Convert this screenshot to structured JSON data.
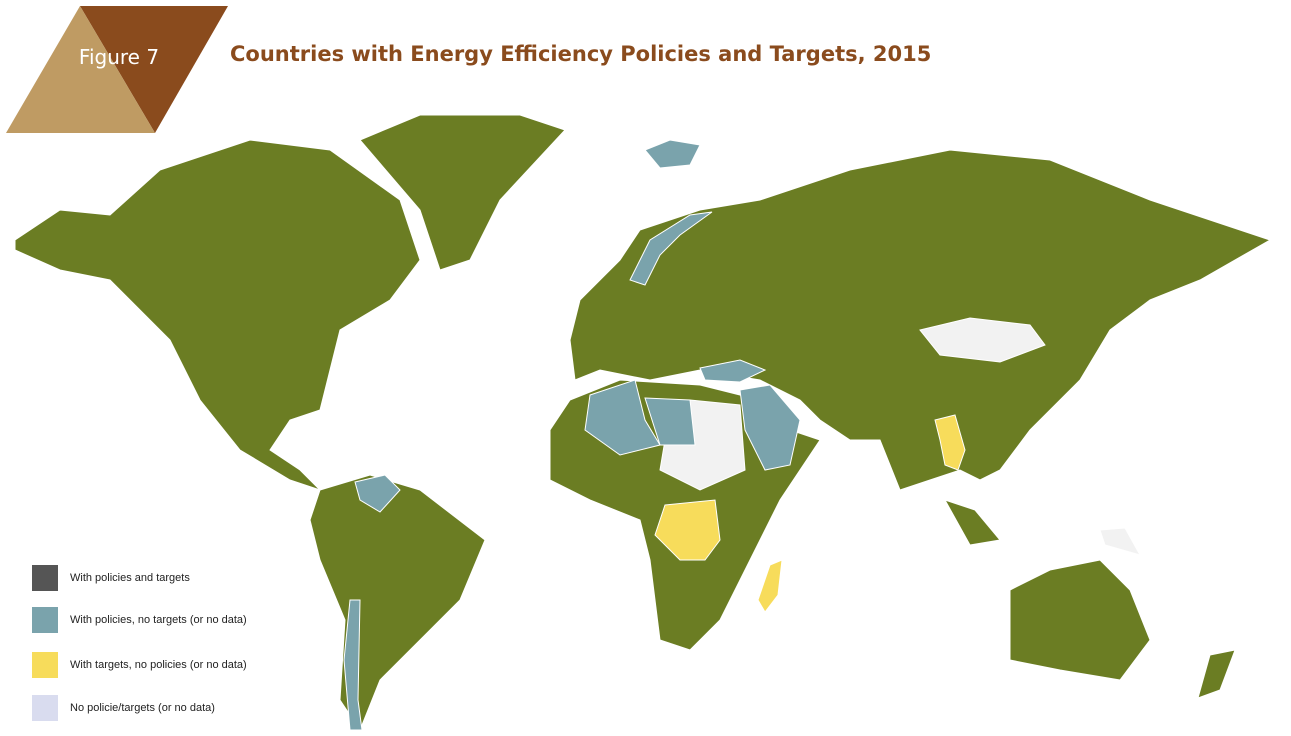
{
  "header": {
    "figure_label": "Figure 7",
    "title": "Countries with Energy Efficiency Policies and Targets, 2015"
  },
  "legend": [
    {
      "label": "With policies and targets",
      "color": "#555555"
    },
    {
      "label": "With policies, no targets (or no data)",
      "color": "#7aa3ac"
    },
    {
      "label": "With targets, no policies (or no data)",
      "color": "#f7dc5b"
    },
    {
      "label": "No policie/targets (or no data)",
      "color": "#d9dcef"
    }
  ]
}
